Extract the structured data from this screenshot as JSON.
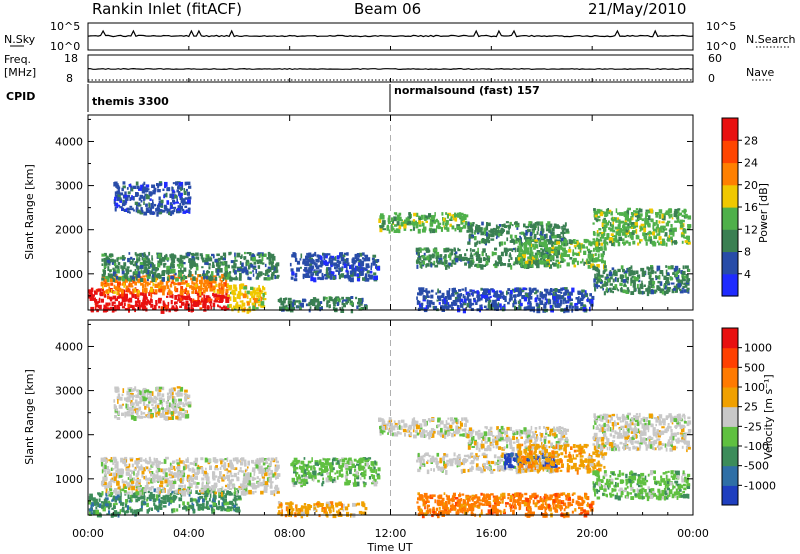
{
  "header": {
    "title": "Rankin Inlet (fitACF)",
    "beam": "Beam 06",
    "date": "21/May/2010"
  },
  "nsky_panel": {
    "left_label": "N.Sky",
    "left_ticks": [
      "10^5",
      "10^0"
    ],
    "right_ticks": [
      "10^5",
      "10^0"
    ],
    "right_label": "N.Search"
  },
  "freq_panel": {
    "left_label_line1": "Freq.",
    "left_label_line2": "[MHz]",
    "left_ticks": [
      "18",
      "8"
    ],
    "right_ticks": [
      "60",
      "0"
    ],
    "right_label": "Nave"
  },
  "cpid_panel": {
    "label": "CPID",
    "segments": [
      {
        "text": "themis 3300"
      },
      {
        "text": "normalsound (fast) 157"
      }
    ]
  },
  "axes": {
    "ylabel": "Slant Range [km]",
    "xlabel": "Time UT",
    "x_ticks": [
      "00:00",
      "04:00",
      "08:00",
      "12:00",
      "16:00",
      "20:00",
      "00:00"
    ],
    "y_ticks": [
      "1000",
      "2000",
      "3000",
      "4000"
    ]
  },
  "power_colorbar": {
    "label": "Power [dB]",
    "ticks": [
      "4",
      "8",
      "12",
      "16",
      "20",
      "24",
      "28"
    ],
    "colors": [
      "#1f2bff",
      "#284ca8",
      "#3a7f52",
      "#4fb04a",
      "#f0c800",
      "#ff8000",
      "#ff4500",
      "#e81010"
    ]
  },
  "velocity_colorbar": {
    "label": "Velocity [m s⁻¹]",
    "ticks": [
      "1000",
      "500",
      "100",
      "25",
      "-25",
      "-100",
      "-500",
      "-1000"
    ],
    "colors": [
      "#1f3fbf",
      "#2f6fa6",
      "#3c8c5a",
      "#5fc040",
      "#c8c8c8",
      "#f0a000",
      "#ff7a00",
      "#ff4000",
      "#e81010"
    ]
  },
  "chart_data": [
    {
      "type": "heatmap",
      "name": "power",
      "x_range_hours": [
        0,
        24
      ],
      "y_range_km": [
        180,
        4600
      ],
      "marker_hour": 12,
      "regions": [
        {
          "t0": 0.0,
          "t1": 2.0,
          "r0": 200,
          "r1": 700,
          "level": 7
        },
        {
          "t0": 2.0,
          "t1": 5.5,
          "r0": 200,
          "r1": 600,
          "level": 7
        },
        {
          "t0": 0.5,
          "t1": 5.5,
          "r0": 600,
          "r1": 1000,
          "level": 5
        },
        {
          "t0": 5.5,
          "t1": 7.0,
          "r0": 200,
          "r1": 800,
          "level": 4
        },
        {
          "t0": 0.5,
          "t1": 7.5,
          "r0": 900,
          "r1": 1500,
          "level": 2
        },
        {
          "t0": 7.5,
          "t1": 11.0,
          "r0": 200,
          "r1": 500,
          "level": 2
        },
        {
          "t0": 8.0,
          "t1": 11.5,
          "r0": 900,
          "r1": 1500,
          "level": 1
        },
        {
          "t0": 1.0,
          "t1": 4.0,
          "r0": 2400,
          "r1": 3100,
          "level": 1
        },
        {
          "t0": 11.5,
          "t1": 15.0,
          "r0": 2000,
          "r1": 2400,
          "level": 3
        },
        {
          "t0": 15.0,
          "t1": 19.0,
          "r0": 1700,
          "r1": 2200,
          "level": 2
        },
        {
          "t0": 13.0,
          "t1": 18.5,
          "r0": 1200,
          "r1": 1600,
          "level": 2
        },
        {
          "t0": 17.0,
          "t1": 20.5,
          "r0": 1200,
          "r1": 1800,
          "level": 3
        },
        {
          "t0": 20.0,
          "t1": 23.8,
          "r0": 1700,
          "r1": 2500,
          "level": 3
        },
        {
          "t0": 13.0,
          "t1": 20.0,
          "r0": 200,
          "r1": 700,
          "level": 1
        },
        {
          "t0": 20.0,
          "t1": 23.8,
          "r0": 600,
          "r1": 1200,
          "level": 2
        }
      ]
    },
    {
      "type": "heatmap",
      "name": "velocity",
      "x_range_hours": [
        0,
        24
      ],
      "y_range_km": [
        180,
        4600
      ],
      "marker_hour": 12,
      "regions": [
        {
          "t0": 0.0,
          "t1": 2.0,
          "r0": 200,
          "r1": 700,
          "level": 2
        },
        {
          "t0": 2.0,
          "t1": 6.0,
          "r0": 300,
          "r1": 800,
          "level": 2
        },
        {
          "t0": 0.5,
          "t1": 7.5,
          "r0": 700,
          "r1": 1500,
          "level": 4
        },
        {
          "t0": 7.5,
          "t1": 11.0,
          "r0": 200,
          "r1": 500,
          "level": 5
        },
        {
          "t0": 8.0,
          "t1": 11.5,
          "r0": 900,
          "r1": 1500,
          "level": 3
        },
        {
          "t0": 1.0,
          "t1": 4.0,
          "r0": 2400,
          "r1": 3100,
          "level": 4
        },
        {
          "t0": 11.5,
          "t1": 15.0,
          "r0": 2000,
          "r1": 2400,
          "level": 4
        },
        {
          "t0": 15.0,
          "t1": 19.0,
          "r0": 1700,
          "r1": 2200,
          "level": 4
        },
        {
          "t0": 13.0,
          "t1": 18.5,
          "r0": 1200,
          "r1": 1600,
          "level": 4
        },
        {
          "t0": 16.5,
          "t1": 18.5,
          "r0": 1300,
          "r1": 1600,
          "level": 0
        },
        {
          "t0": 17.0,
          "t1": 20.5,
          "r0": 1200,
          "r1": 1800,
          "level": 5
        },
        {
          "t0": 20.0,
          "t1": 23.8,
          "r0": 1700,
          "r1": 2500,
          "level": 4
        },
        {
          "t0": 13.0,
          "t1": 20.0,
          "r0": 200,
          "r1": 700,
          "level": 6
        },
        {
          "t0": 20.0,
          "t1": 23.8,
          "r0": 600,
          "r1": 1200,
          "level": 3
        }
      ]
    }
  ]
}
